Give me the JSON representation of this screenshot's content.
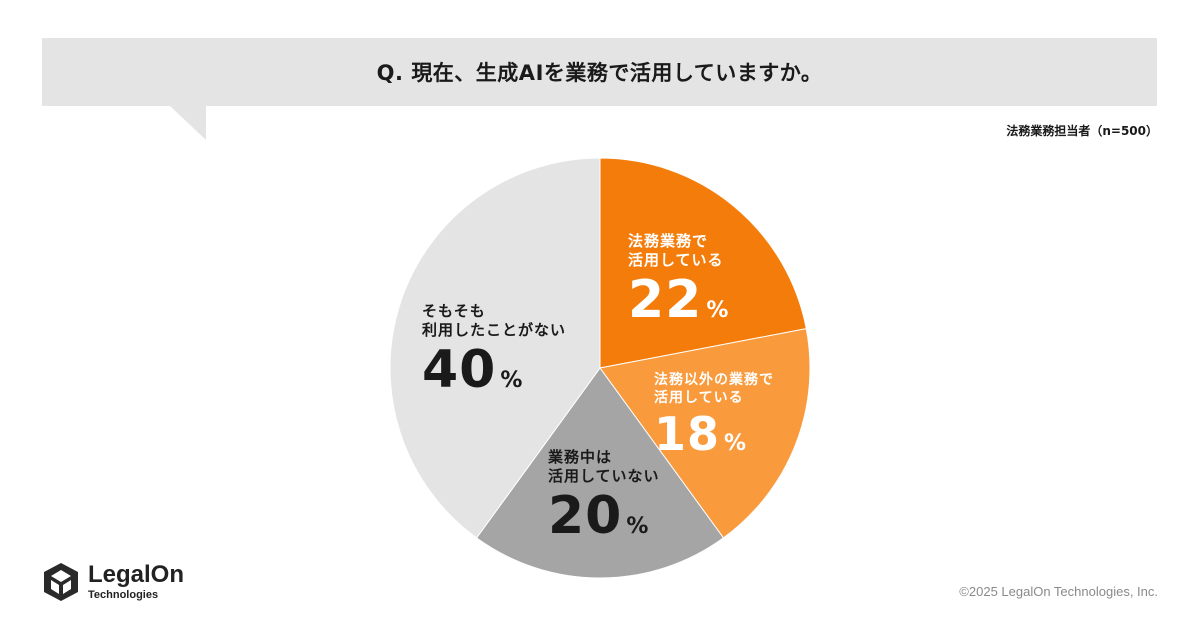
{
  "header": {
    "question": "Q. 現在、生成AIを業務で活用していますか。",
    "sample": "法務業務担当者（n=500）"
  },
  "chart_data": {
    "type": "pie",
    "title": "Q. 現在、生成AIを業務で活用していますか。",
    "subtitle": "法務業務担当者（n=500）",
    "unit": "%",
    "slices": [
      {
        "label": "法務業務で\n活用している",
        "value": 22,
        "color": "#f47c0a",
        "text_color": "#ffffff"
      },
      {
        "label": "法務以外の業務で\n活用している",
        "value": 18,
        "color": "#f99a3c",
        "text_color": "#ffffff"
      },
      {
        "label": "業務中は\n活用していない",
        "value": 20,
        "color": "#a5a5a5",
        "text_color": "#1a1a1a"
      },
      {
        "label": "そもそも\n利用したことがない",
        "value": 40,
        "color": "#e4e4e4",
        "text_color": "#1a1a1a"
      }
    ]
  },
  "footer": {
    "logo_name": "LegalOn",
    "logo_sub": "Technologies",
    "copyright": "©2025 LegalOn Technologies, Inc."
  }
}
